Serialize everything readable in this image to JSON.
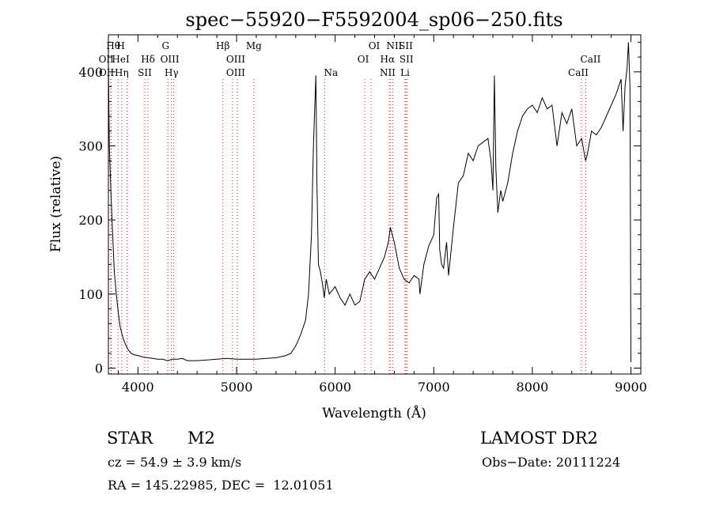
{
  "chart_data": {
    "type": "line",
    "title": "spec−55920−F5592004_sp06−250.fits",
    "xlabel": "Wavelength (Å)",
    "ylabel": "Flux (relative)",
    "xlim": [
      3700,
      9100
    ],
    "ylim": [
      -8,
      450
    ],
    "xticks": [
      4000,
      5000,
      6000,
      7000,
      8000,
      9000
    ],
    "yticks": [
      0,
      100,
      200,
      300,
      400
    ],
    "series": [
      {
        "x": [
          3700,
          3710,
          3725,
          3740,
          3760,
          3780,
          3800,
          3820,
          3850,
          3880,
          3900,
          3930,
          3960,
          4000,
          4050,
          4100,
          4150,
          4200,
          4250,
          4300,
          4350,
          4400,
          4450,
          4500,
          4600,
          4700,
          4800,
          4900,
          5000,
          5100,
          5200,
          5300,
          5400,
          5500,
          5550,
          5600,
          5650,
          5700,
          5730,
          5760,
          5780,
          5795,
          5805,
          5815,
          5830,
          5850,
          5870,
          5890,
          5910,
          5940,
          6000,
          6050,
          6100,
          6150,
          6200,
          6250,
          6300,
          6350,
          6400,
          6450,
          6500,
          6540,
          6560,
          6580,
          6600,
          6650,
          6700,
          6750,
          6800,
          6850,
          6860,
          6900,
          6950,
          7000,
          7030,
          7050,
          7060,
          7080,
          7100,
          7130,
          7150,
          7200,
          7250,
          7300,
          7350,
          7400,
          7450,
          7500,
          7550,
          7580,
          7600,
          7615,
          7630,
          7650,
          7680,
          7700,
          7750,
          7800,
          7850,
          7900,
          7950,
          8000,
          8050,
          8100,
          8150,
          8200,
          8250,
          8300,
          8350,
          8400,
          8450,
          8500,
          8520,
          8540,
          8560,
          8600,
          8650,
          8700,
          8750,
          8800,
          8850,
          8900,
          8920,
          8940,
          8960,
          8975,
          8990,
          9000
        ],
        "y": [
          415,
          300,
          240,
          190,
          130,
          100,
          75,
          55,
          40,
          30,
          25,
          20,
          18,
          17,
          15,
          14,
          13,
          12,
          12,
          10,
          12,
          12,
          13,
          10,
          10,
          11,
          12,
          13,
          12,
          12,
          12,
          13,
          14,
          17,
          20,
          30,
          45,
          65,
          100,
          180,
          300,
          360,
          395,
          250,
          140,
          130,
          115,
          95,
          120,
          100,
          110,
          95,
          85,
          100,
          85,
          90,
          120,
          130,
          120,
          135,
          150,
          170,
          190,
          180,
          170,
          135,
          120,
          115,
          125,
          120,
          100,
          140,
          165,
          180,
          230,
          235,
          160,
          140,
          135,
          170,
          125,
          190,
          250,
          260,
          290,
          280,
          300,
          305,
          310,
          280,
          240,
          395,
          270,
          210,
          240,
          225,
          250,
          290,
          320,
          340,
          350,
          355,
          345,
          365,
          350,
          355,
          300,
          345,
          330,
          350,
          300,
          310,
          295,
          280,
          290,
          320,
          315,
          325,
          340,
          355,
          370,
          390,
          320,
          380,
          405,
          440,
          380,
          8
        ]
      }
    ],
    "line_markers": [
      {
        "label": "Hθ",
        "row": 0,
        "wl": 3798,
        "dx": -6
      },
      {
        "label": "OII",
        "row": 1,
        "wl": 3726,
        "dx": -6
      },
      {
        "label": "OII",
        "row": 2,
        "wl": 3729,
        "dx": -6
      },
      {
        "label": "H",
        "row": 0,
        "wl": 3889,
        "dx": -8
      },
      {
        "label": "HeI",
        "row": 1,
        "wl": 3889,
        "dx": -8
      },
      {
        "label": "Hη",
        "row": 2,
        "wl": 3835,
        "dx": 0
      },
      {
        "label": "Hδ",
        "row": 1,
        "wl": 4102,
        "dx": 0
      },
      {
        "label": "SII",
        "row": 2,
        "wl": 4069,
        "dx": 0
      },
      {
        "label": "G",
        "row": 0,
        "wl": 4304,
        "dx": -3
      },
      {
        "label": "OIII",
        "row": 1,
        "wl": 4363,
        "dx": -5
      },
      {
        "label": "Hγ",
        "row": 2,
        "wl": 4340,
        "dx": 0
      },
      {
        "label": "Hβ",
        "row": 0,
        "wl": 4861,
        "dx": 0
      },
      {
        "label": "OIII",
        "row": 1,
        "wl": 4959,
        "dx": 4
      },
      {
        "label": "OIII",
        "row": 2,
        "wl": 5007,
        "dx": -2
      },
      {
        "label": "Mg",
        "row": 0,
        "wl": 5175,
        "dx": 0
      },
      {
        "label": "Na",
        "row": 2,
        "wl": 5893,
        "dx": 8
      },
      {
        "label": "OI",
        "row": 0,
        "wl": 6364,
        "dx": 4
      },
      {
        "label": "OI",
        "row": 1,
        "wl": 6300,
        "dx": -2
      },
      {
        "label": "NII",
        "row": 0,
        "wl": 6584,
        "dx": 2
      },
      {
        "label": "SII",
        "row": 0,
        "wl": 6717,
        "dx": 0
      },
      {
        "label": "Hα",
        "row": 1,
        "wl": 6563,
        "dx": -4
      },
      {
        "label": "SII",
        "row": 1,
        "wl": 6731,
        "dx": -1
      },
      {
        "label": "NII",
        "row": 2,
        "wl": 6548,
        "dx": -2
      },
      {
        "label": "Li",
        "row": 2,
        "wl": 6708,
        "dx": 0
      },
      {
        "label": "CaII",
        "row": 1,
        "wl": 8542,
        "dx": 6
      },
      {
        "label": "CaII",
        "row": 2,
        "wl": 8498,
        "dx": -4
      }
    ],
    "grid": false,
    "legend": "none"
  },
  "info": {
    "object_class": "STAR",
    "subclass": "M2",
    "survey": "LAMOST DR2",
    "cz": "cz = 54.9 ± 3.9 km/s",
    "obs_date": "Obs−Date: 20111224",
    "coords": "RA = 145.22985, DEC =  12.01051"
  },
  "colors": {
    "spectrum": "#000000",
    "line_markers": "#d11a1a"
  }
}
